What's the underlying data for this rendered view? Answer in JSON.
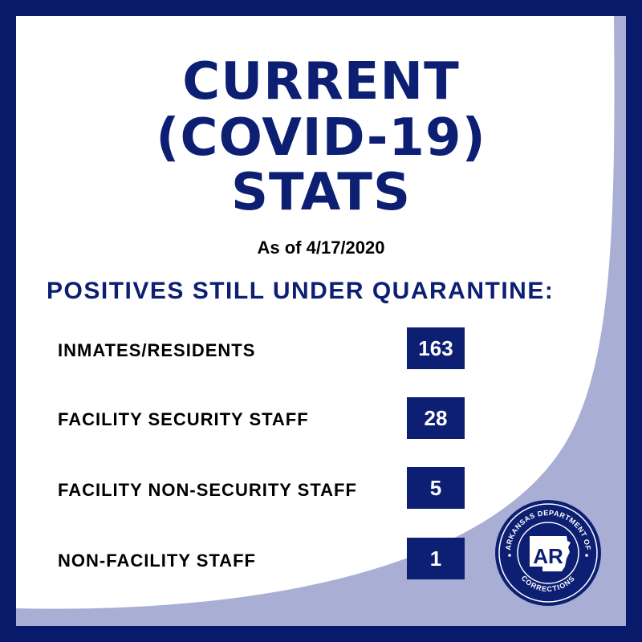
{
  "title": {
    "line1": "CURRENT",
    "line2": "(COVID-19)",
    "line3": "STATS"
  },
  "as_of": "As of 4/17/2020",
  "heading": "POSITIVES STILL UNDER QUARANTINE:",
  "rows": [
    {
      "label": "INMATES/RESIDENTS",
      "value": "163"
    },
    {
      "label": "FACILITY SECURITY STAFF",
      "value": "28"
    },
    {
      "label": "FACILITY NON-SECURITY STAFF",
      "value": "5"
    },
    {
      "label": "NON-FACILITY STAFF",
      "value": "1"
    }
  ],
  "seal": {
    "top_text": "ARKANSAS DEPARTMENT OF",
    "bottom_text": "CORRECTIONS",
    "monogram": "AR"
  },
  "colors": {
    "navy": "#0d1f73",
    "border": "#0a1a6b",
    "swoosh": "#a9aed4",
    "background": "#ffffff"
  }
}
